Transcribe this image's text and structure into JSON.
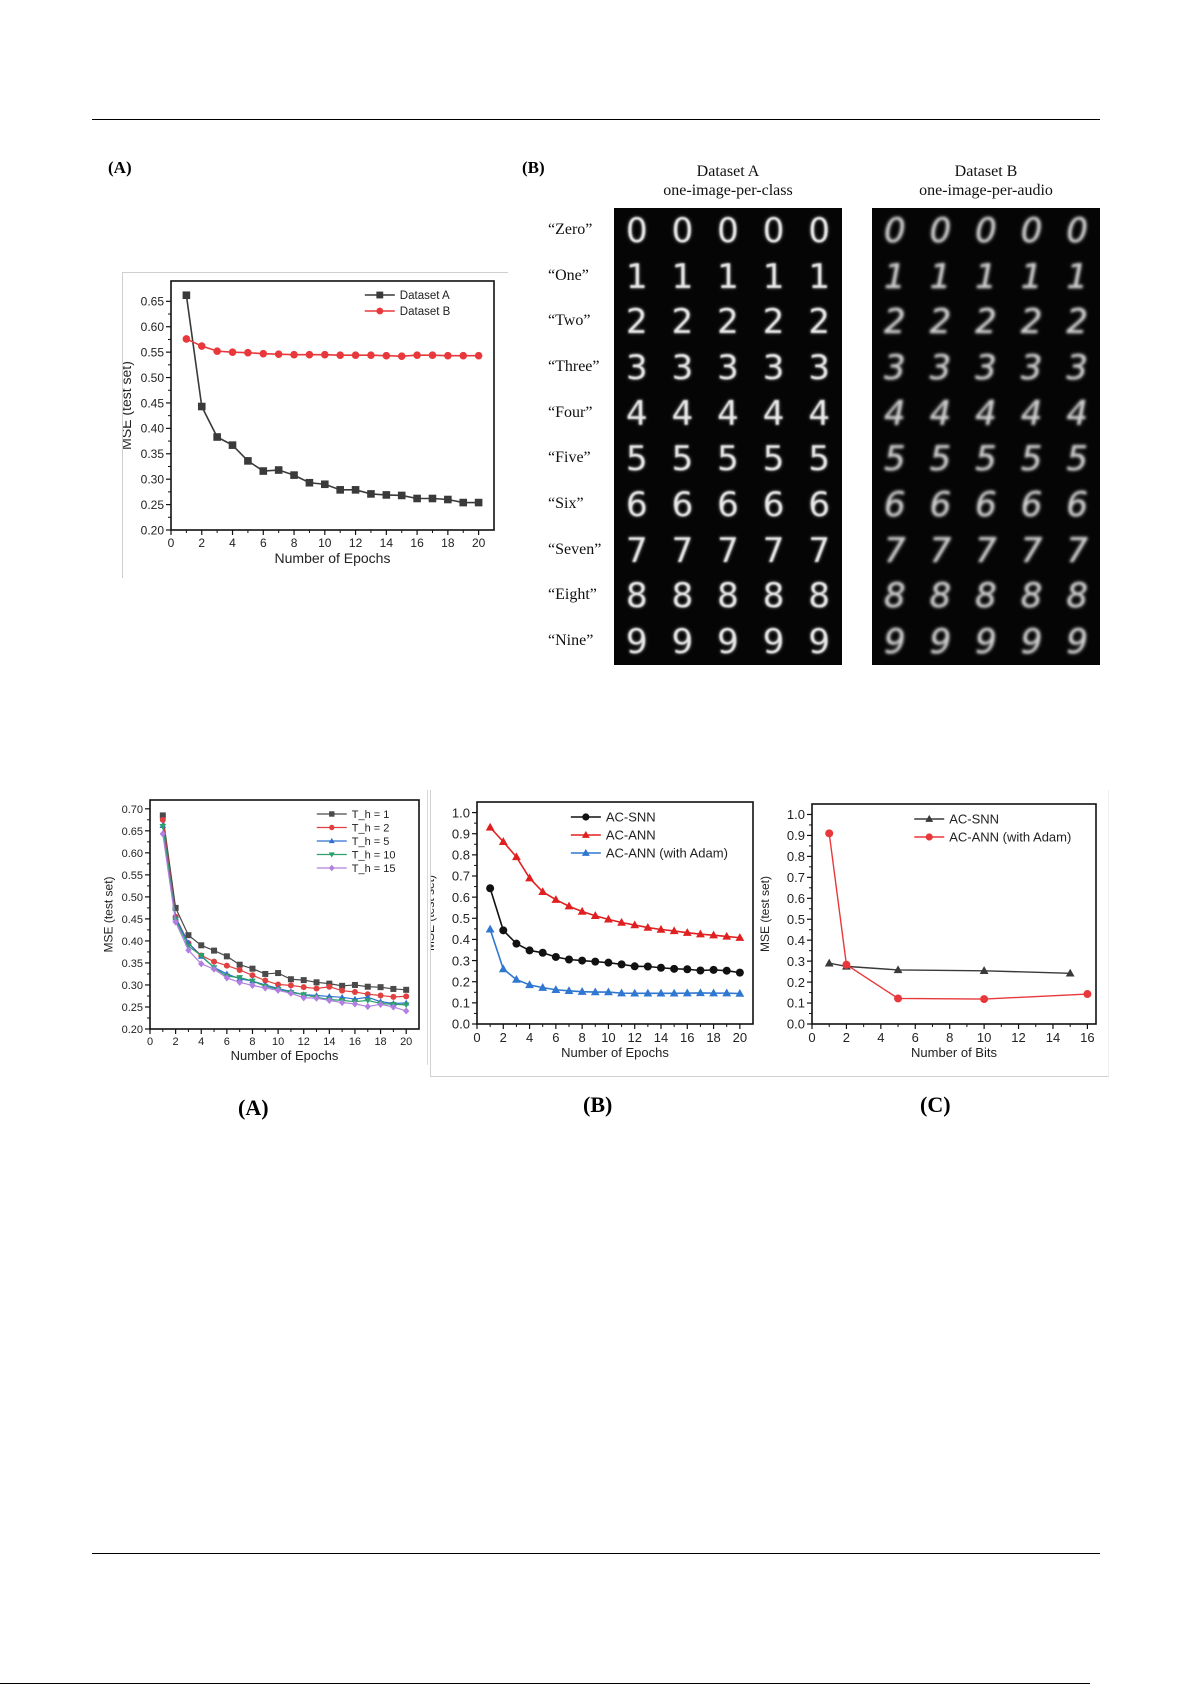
{
  "page": {
    "top_figure": {
      "panel_a_label": "(A)",
      "panel_b_label": "(B)",
      "grid_a_title_line1": "Dataset A",
      "grid_a_title_line2": "one-image-per-class",
      "grid_b_title_line1": "Dataset B",
      "grid_b_title_line2": "one-image-per-audio",
      "row_labels": [
        "“Zero”",
        "“One”",
        "“Two”",
        "“Three”",
        "“Four”",
        "“Five”",
        "“Six”",
        "“Seven”",
        "“Eight”",
        "“Nine”"
      ],
      "digits": [
        "0",
        "1",
        "2",
        "3",
        "4",
        "5",
        "6",
        "7",
        "8",
        "9"
      ],
      "samples_per_row": 5
    },
    "bottom_figure": {
      "panel_a_label": "(A)",
      "panel_b_label": "(B)",
      "panel_c_label": "(C)"
    },
    "colors": {
      "black_series": "#3a3a3a",
      "red_series": "#e8383b",
      "blue_series": "#2f77d0",
      "green_series": "#2aa06a",
      "purple_series": "#b07fe0"
    }
  },
  "chart_data": [
    {
      "id": "top-a",
      "type": "line",
      "title": "",
      "xlabel": "Number of Epochs",
      "ylabel": "MSE (test set)",
      "xlim": [
        0,
        21
      ],
      "ylim": [
        0.2,
        0.69
      ],
      "xticks": [
        0,
        2,
        4,
        6,
        8,
        10,
        12,
        14,
        16,
        18,
        20
      ],
      "yticks": [
        0.2,
        0.25,
        0.3,
        0.35,
        0.4,
        0.45,
        0.5,
        0.55,
        0.6,
        0.65
      ],
      "ytick_decimals": 2,
      "grid": false,
      "legend_position": "upper right",
      "x": [
        1,
        2,
        3,
        4,
        5,
        6,
        7,
        8,
        9,
        10,
        11,
        12,
        13,
        14,
        15,
        16,
        17,
        18,
        19,
        20
      ],
      "series": [
        {
          "name": "Dataset A",
          "marker": "square",
          "color": "#3a3a3a",
          "values": [
            0.662,
            0.443,
            0.383,
            0.367,
            0.336,
            0.316,
            0.318,
            0.308,
            0.293,
            0.29,
            0.279,
            0.279,
            0.271,
            0.269,
            0.268,
            0.262,
            0.262,
            0.26,
            0.254,
            0.254
          ]
        },
        {
          "name": "Dataset B",
          "marker": "circle",
          "color": "#e8383b",
          "values": [
            0.576,
            0.562,
            0.552,
            0.55,
            0.549,
            0.547,
            0.546,
            0.545,
            0.545,
            0.545,
            0.544,
            0.544,
            0.544,
            0.543,
            0.542,
            0.544,
            0.544,
            0.543,
            0.543,
            0.543
          ]
        }
      ]
    },
    {
      "id": "bottom-a",
      "type": "line",
      "title": "",
      "xlabel": "Number of Epochs",
      "ylabel": "MSE (test set)",
      "xlim": [
        0,
        21
      ],
      "ylim": [
        0.2,
        0.72
      ],
      "xticks": [
        0,
        2,
        4,
        6,
        8,
        10,
        12,
        14,
        16,
        18,
        20
      ],
      "yticks": [
        0.2,
        0.25,
        0.3,
        0.35,
        0.4,
        0.45,
        0.5,
        0.55,
        0.6,
        0.65,
        0.7
      ],
      "ytick_decimals": 2,
      "grid": false,
      "legend_position": "upper right",
      "x": [
        1,
        2,
        3,
        4,
        5,
        6,
        7,
        8,
        9,
        10,
        11,
        12,
        13,
        14,
        15,
        16,
        17,
        18,
        19,
        20
      ],
      "series": [
        {
          "name": "T_h = 1",
          "marker": "square",
          "color": "#4a4a4a",
          "values": [
            0.685,
            0.475,
            0.413,
            0.39,
            0.378,
            0.365,
            0.346,
            0.337,
            0.325,
            0.327,
            0.313,
            0.311,
            0.306,
            0.303,
            0.298,
            0.3,
            0.296,
            0.295,
            0.291,
            0.289
          ]
        },
        {
          "name": "T_h = 2",
          "marker": "circle",
          "color": "#e04040",
          "values": [
            0.675,
            0.455,
            0.395,
            0.367,
            0.353,
            0.344,
            0.334,
            0.322,
            0.31,
            0.301,
            0.299,
            0.295,
            0.292,
            0.296,
            0.287,
            0.284,
            0.279,
            0.276,
            0.273,
            0.274
          ]
        },
        {
          "name": "T_h = 5",
          "marker": "triangle-up",
          "color": "#2f6fd0",
          "values": [
            0.662,
            0.452,
            0.395,
            0.365,
            0.34,
            0.325,
            0.314,
            0.309,
            0.3,
            0.292,
            0.285,
            0.278,
            0.276,
            0.274,
            0.272,
            0.268,
            0.272,
            0.262,
            0.258,
            0.259
          ]
        },
        {
          "name": "T_h = 10",
          "marker": "triangle-down",
          "color": "#2aa06a",
          "values": [
            0.66,
            0.448,
            0.388,
            0.367,
            0.339,
            0.32,
            0.317,
            0.309,
            0.297,
            0.29,
            0.283,
            0.278,
            0.272,
            0.267,
            0.265,
            0.262,
            0.265,
            0.258,
            0.256,
            0.255
          ]
        },
        {
          "name": "T_h = 15",
          "marker": "diamond",
          "color": "#b07fe0",
          "values": [
            0.643,
            0.443,
            0.379,
            0.348,
            0.336,
            0.316,
            0.306,
            0.299,
            0.293,
            0.288,
            0.281,
            0.271,
            0.27,
            0.265,
            0.26,
            0.257,
            0.251,
            0.256,
            0.25,
            0.241
          ]
        }
      ]
    },
    {
      "id": "bottom-b",
      "type": "line",
      "title": "",
      "xlabel": "Number of Epochs",
      "ylabel": "MSE (test set)",
      "xlim": [
        0,
        21
      ],
      "ylim": [
        0.0,
        1.05
      ],
      "xticks": [
        0,
        2,
        4,
        6,
        8,
        10,
        12,
        14,
        16,
        18,
        20
      ],
      "yticks": [
        0.0,
        0.1,
        0.2,
        0.3,
        0.4,
        0.5,
        0.6,
        0.7,
        0.8,
        0.9,
        1.0
      ],
      "ytick_decimals": 1,
      "grid": false,
      "legend_position": "upper right",
      "x": [
        1,
        2,
        3,
        4,
        5,
        6,
        7,
        8,
        9,
        10,
        11,
        12,
        13,
        14,
        15,
        16,
        17,
        18,
        19,
        20
      ],
      "series": [
        {
          "name": "AC-SNN",
          "marker": "circle",
          "color": "#111111",
          "values": [
            0.642,
            0.443,
            0.38,
            0.348,
            0.337,
            0.317,
            0.305,
            0.3,
            0.295,
            0.29,
            0.282,
            0.273,
            0.272,
            0.266,
            0.261,
            0.259,
            0.253,
            0.256,
            0.252,
            0.243
          ]
        },
        {
          "name": "AC-ANN",
          "marker": "triangle-up",
          "color": "#e02020",
          "values": [
            0.93,
            0.862,
            0.79,
            0.69,
            0.625,
            0.588,
            0.557,
            0.532,
            0.512,
            0.495,
            0.48,
            0.468,
            0.456,
            0.447,
            0.44,
            0.432,
            0.425,
            0.42,
            0.414,
            0.408
          ]
        },
        {
          "name": "AC-ANN (with Adam)",
          "marker": "triangle-up",
          "color": "#2f77d0",
          "values": [
            0.448,
            0.26,
            0.21,
            0.185,
            0.172,
            0.162,
            0.157,
            0.153,
            0.151,
            0.151,
            0.146,
            0.145,
            0.145,
            0.145,
            0.145,
            0.146,
            0.147,
            0.146,
            0.146,
            0.144
          ]
        }
      ]
    },
    {
      "id": "bottom-c",
      "type": "line",
      "title": "",
      "xlabel": "Number of Bits",
      "ylabel": "MSE (test set)",
      "xlim": [
        0,
        16.5
      ],
      "ylim": [
        0.0,
        1.05
      ],
      "xticks": [
        0,
        2,
        4,
        6,
        8,
        10,
        12,
        14,
        16
      ],
      "yticks": [
        0.0,
        0.1,
        0.2,
        0.3,
        0.4,
        0.5,
        0.6,
        0.7,
        0.8,
        0.9,
        1.0
      ],
      "ytick_decimals": 1,
      "grid": false,
      "legend_position": "upper right",
      "series": [
        {
          "name": "AC-SNN",
          "marker": "triangle-up",
          "color": "#3a3a3a",
          "x": [
            1,
            2,
            5,
            10,
            15
          ],
          "values": [
            0.29,
            0.275,
            0.258,
            0.254,
            0.242
          ]
        },
        {
          "name": "AC-ANN (with Adam)",
          "marker": "circle",
          "color": "#e8383b",
          "x": [
            1,
            2,
            5,
            10,
            16
          ],
          "values": [
            0.91,
            0.283,
            0.122,
            0.119,
            0.143
          ]
        }
      ]
    }
  ]
}
